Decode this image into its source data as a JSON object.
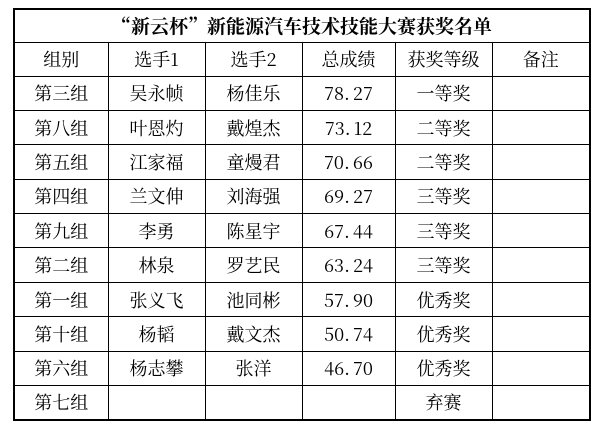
{
  "page": {
    "background_color": "#ffffff",
    "border_color": "#000000",
    "text_color": "#000000"
  },
  "table": {
    "title": "“新云杯”新能源汽车技术技能大赛获奖名单",
    "columns": [
      "组别",
      "选手1",
      "选手2",
      "总成绩",
      "获奖等级",
      "备注"
    ],
    "rows": [
      {
        "group": "第三组",
        "player1": "吴永帧",
        "player2": "杨佳乐",
        "score": "78.27",
        "award": "一等奖",
        "remark": ""
      },
      {
        "group": "第八组",
        "player1": "叶恩灼",
        "player2": "戴煌杰",
        "score": "73.12",
        "award": "二等奖",
        "remark": ""
      },
      {
        "group": "第五组",
        "player1": "江家福",
        "player2": "童熳君",
        "score": "70.66",
        "award": "二等奖",
        "remark": ""
      },
      {
        "group": "第四组",
        "player1": "兰文伸",
        "player2": "刘海强",
        "score": "69.27",
        "award": "三等奖",
        "remark": ""
      },
      {
        "group": "第九组",
        "player1": "李勇",
        "player2": "陈星宇",
        "score": "67.44",
        "award": "三等奖",
        "remark": ""
      },
      {
        "group": "第二组",
        "player1": "林泉",
        "player2": "罗艺民",
        "score": "63.24",
        "award": "三等奖",
        "remark": ""
      },
      {
        "group": "第一组",
        "player1": "张义飞",
        "player2": "池同彬",
        "score": "57.90",
        "award": "优秀奖",
        "remark": ""
      },
      {
        "group": "第十组",
        "player1": "杨韬",
        "player2": "戴文杰",
        "score": "50.74",
        "award": "优秀奖",
        "remark": ""
      },
      {
        "group": "第六组",
        "player1": "杨志攀",
        "player2": "张洋",
        "score": "46.70",
        "award": "优秀奖",
        "remark": ""
      },
      {
        "group": "第七组",
        "player1": "",
        "player2": "",
        "score": "",
        "award": "弃赛",
        "remark": ""
      }
    ]
  }
}
